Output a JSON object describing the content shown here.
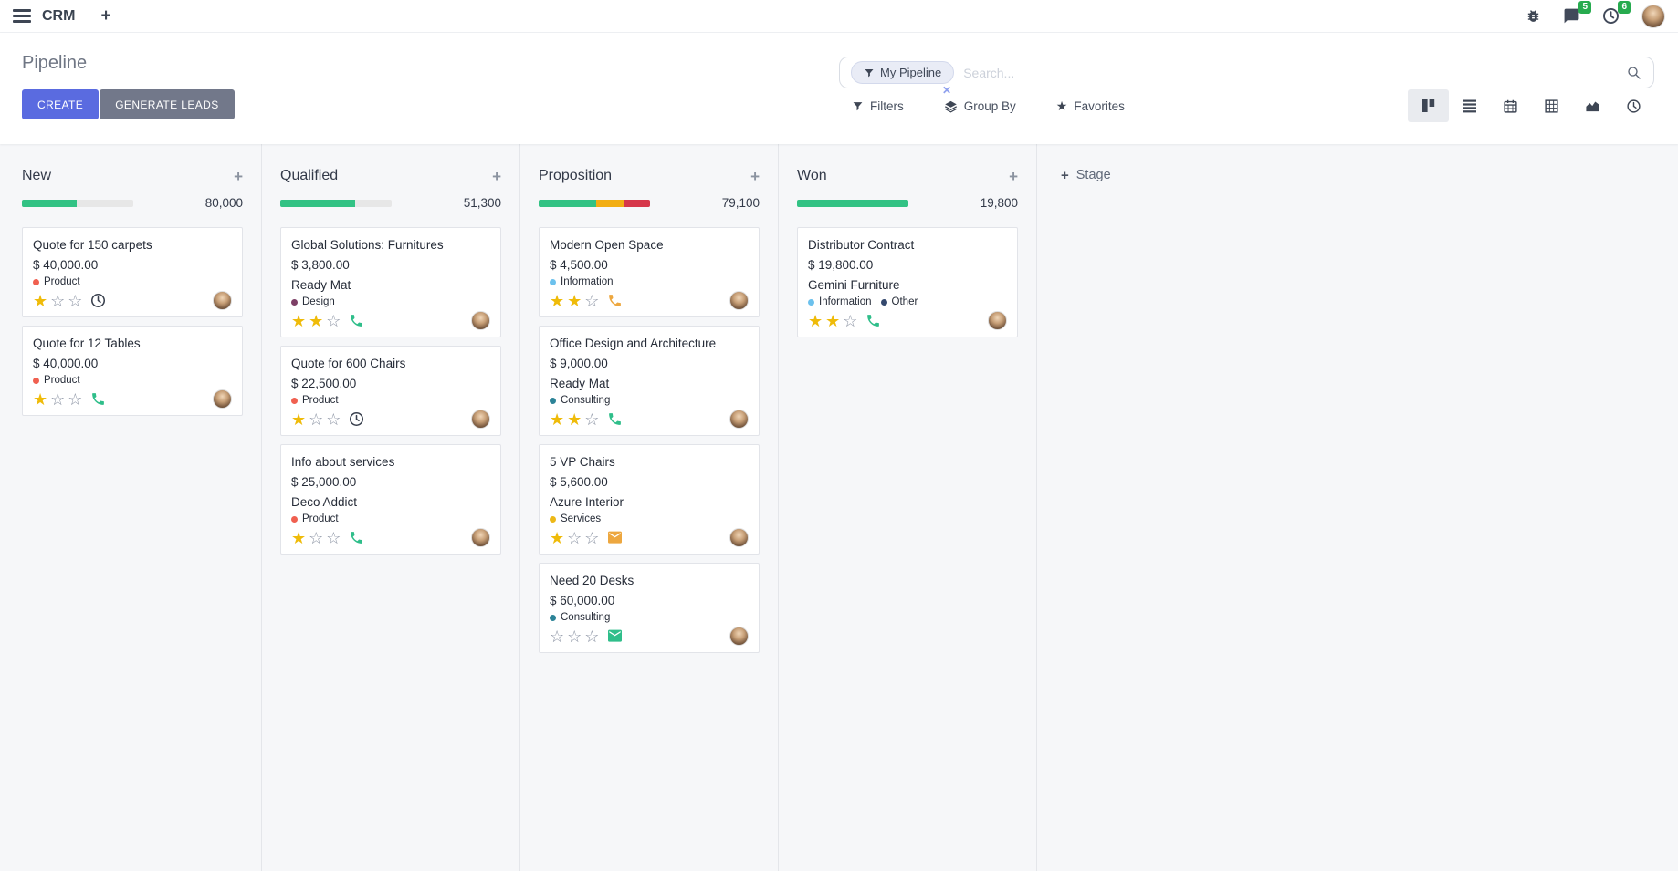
{
  "topbar": {
    "app": "CRM",
    "messages_badge": "5",
    "activities_badge": "6"
  },
  "panel": {
    "title": "Pipeline",
    "create_label": "CREATE",
    "generate_label": "GENERATE LEADS",
    "facet_label": "My Pipeline",
    "search_placeholder": "Search...",
    "filters_label": "Filters",
    "group_by_label": "Group By",
    "favorites_label": "Favorites"
  },
  "colors": {
    "accent": "#5a6be0",
    "secondary_button": "#72788a",
    "badge_green": "#27ab4f",
    "progress_green": "#32c284",
    "progress_yellow": "#f2ae13",
    "progress_red": "#d6374a",
    "star_filled": "#efbb09",
    "star_empty": "#8b93a3"
  },
  "board": {
    "add_stage_label": "Stage",
    "columns": [
      {
        "title": "New",
        "counter": "80,000",
        "progress": [
          {
            "color": "#32c284",
            "pct": 49
          }
        ],
        "cards": [
          {
            "title": "Quote for 150 carpets",
            "amount": "$ 40,000.00",
            "partner": null,
            "tags": [
              {
                "label": "Product",
                "color": "#f06050"
              }
            ],
            "stars": 1,
            "activity": {
              "icon": "clock",
              "color": "#39404e"
            }
          },
          {
            "title": "Quote for 12 Tables",
            "amount": "$ 40,000.00",
            "partner": null,
            "tags": [
              {
                "label": "Product",
                "color": "#f06050"
              }
            ],
            "stars": 1,
            "activity": {
              "icon": "phone",
              "color": "#2fbe8a"
            }
          }
        ]
      },
      {
        "title": "Qualified",
        "counter": "51,300",
        "progress": [
          {
            "color": "#32c284",
            "pct": 67
          }
        ],
        "cards": [
          {
            "title": "Global Solutions: Furnitures",
            "amount": "$ 3,800.00",
            "partner": "Ready Mat",
            "tags": [
              {
                "label": "Design",
                "color": "#7d3f66"
              }
            ],
            "stars": 2,
            "activity": {
              "icon": "phone",
              "color": "#2fbe8a"
            }
          },
          {
            "title": "Quote for 600 Chairs",
            "amount": "$ 22,500.00",
            "partner": null,
            "tags": [
              {
                "label": "Product",
                "color": "#f06050"
              }
            ],
            "stars": 1,
            "activity": {
              "icon": "clock",
              "color": "#39404e"
            }
          },
          {
            "title": "Info about services",
            "amount": "$ 25,000.00",
            "partner": "Deco Addict",
            "tags": [
              {
                "label": "Product",
                "color": "#f06050"
              }
            ],
            "stars": 1,
            "activity": {
              "icon": "phone",
              "color": "#2fbe8a"
            }
          }
        ]
      },
      {
        "title": "Proposition",
        "counter": "79,100",
        "progress": [
          {
            "color": "#32c284",
            "pct": 52
          },
          {
            "color": "#f2ae13",
            "pct": 24
          },
          {
            "color": "#d6374a",
            "pct": 24
          }
        ],
        "cards": [
          {
            "title": "Modern Open Space",
            "amount": "$ 4,500.00",
            "partner": null,
            "tags": [
              {
                "label": "Information",
                "color": "#6cc1ed"
              }
            ],
            "stars": 2,
            "activity": {
              "icon": "phone",
              "color": "#eda73f"
            }
          },
          {
            "title": "Office Design and Architecture",
            "amount": "$ 9,000.00",
            "partner": "Ready Mat",
            "tags": [
              {
                "label": "Consulting",
                "color": "#2c8397"
              }
            ],
            "stars": 2,
            "activity": {
              "icon": "phone",
              "color": "#2fbe8a"
            }
          },
          {
            "title": "5 VP Chairs",
            "amount": "$ 5,600.00",
            "partner": "Azure Interior",
            "tags": [
              {
                "label": "Services",
                "color": "#edb817"
              }
            ],
            "stars": 1,
            "activity": {
              "icon": "envelope",
              "color": "#eda73f"
            }
          },
          {
            "title": "Need 20 Desks",
            "amount": "$ 60,000.00",
            "partner": null,
            "tags": [
              {
                "label": "Consulting",
                "color": "#2c8397"
              }
            ],
            "stars": 0,
            "activity": {
              "icon": "envelope",
              "color": "#2fbe8a"
            }
          }
        ]
      },
      {
        "title": "Won",
        "counter": "19,800",
        "progress": [
          {
            "color": "#32c284",
            "pct": 100
          }
        ],
        "cards": [
          {
            "title": "Distributor Contract",
            "amount": "$ 19,800.00",
            "partner": "Gemini Furniture",
            "tags": [
              {
                "label": "Information",
                "color": "#6cc1ed"
              },
              {
                "label": "Other",
                "color": "#34496e"
              }
            ],
            "stars": 2,
            "activity": {
              "icon": "phone",
              "color": "#2fbe8a"
            }
          }
        ]
      }
    ]
  }
}
